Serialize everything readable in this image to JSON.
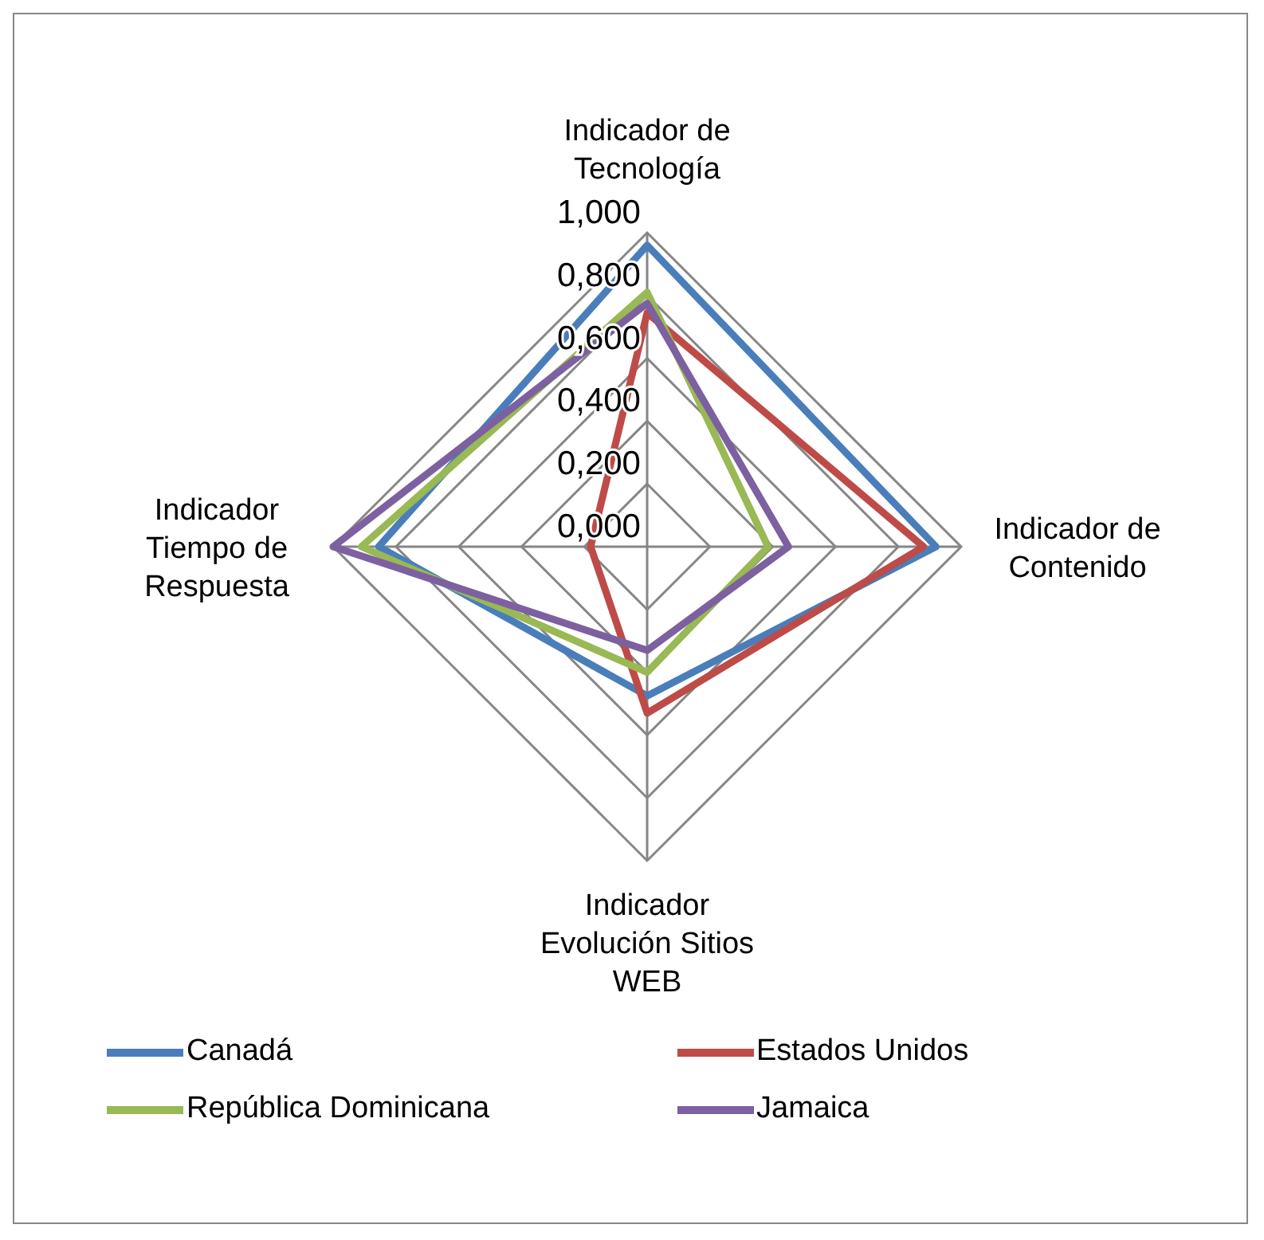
{
  "chart_data": {
    "type": "radar",
    "categories": [
      "Indicador de Tecnología",
      "Indicador de Contenido",
      "Indicador Evolución Sitios WEB",
      "Indicador Tiempo de Respuesta"
    ],
    "series": [
      {
        "name": "Canadá",
        "color": "#4a7ebb",
        "values": [
          0.96,
          0.92,
          0.475,
          0.855
        ]
      },
      {
        "name": "Estados Unidos",
        "color": "#be4b48",
        "values": [
          0.745,
          0.88,
          0.53,
          0.18
        ]
      },
      {
        "name": "República Dominicana",
        "color": "#98b954",
        "values": [
          0.81,
          0.385,
          0.4,
          0.91
        ]
      },
      {
        "name": "Jamaica",
        "color": "#7d60a0",
        "values": [
          0.775,
          0.45,
          0.33,
          1.0
        ]
      }
    ],
    "ylim": [
      0,
      1
    ],
    "yticks": [
      {
        "value": 0,
        "label": "0,000"
      },
      {
        "value": 0.2,
        "label": "0,200"
      },
      {
        "value": 0.4,
        "label": "0,400"
      },
      {
        "value": 0.6,
        "label": "0,600"
      },
      {
        "value": 0.8,
        "label": "0,800"
      },
      {
        "value": 1,
        "label": "1,000"
      }
    ],
    "grid": true,
    "legend": "bottom",
    "marker": "none",
    "line_style": "solid"
  }
}
